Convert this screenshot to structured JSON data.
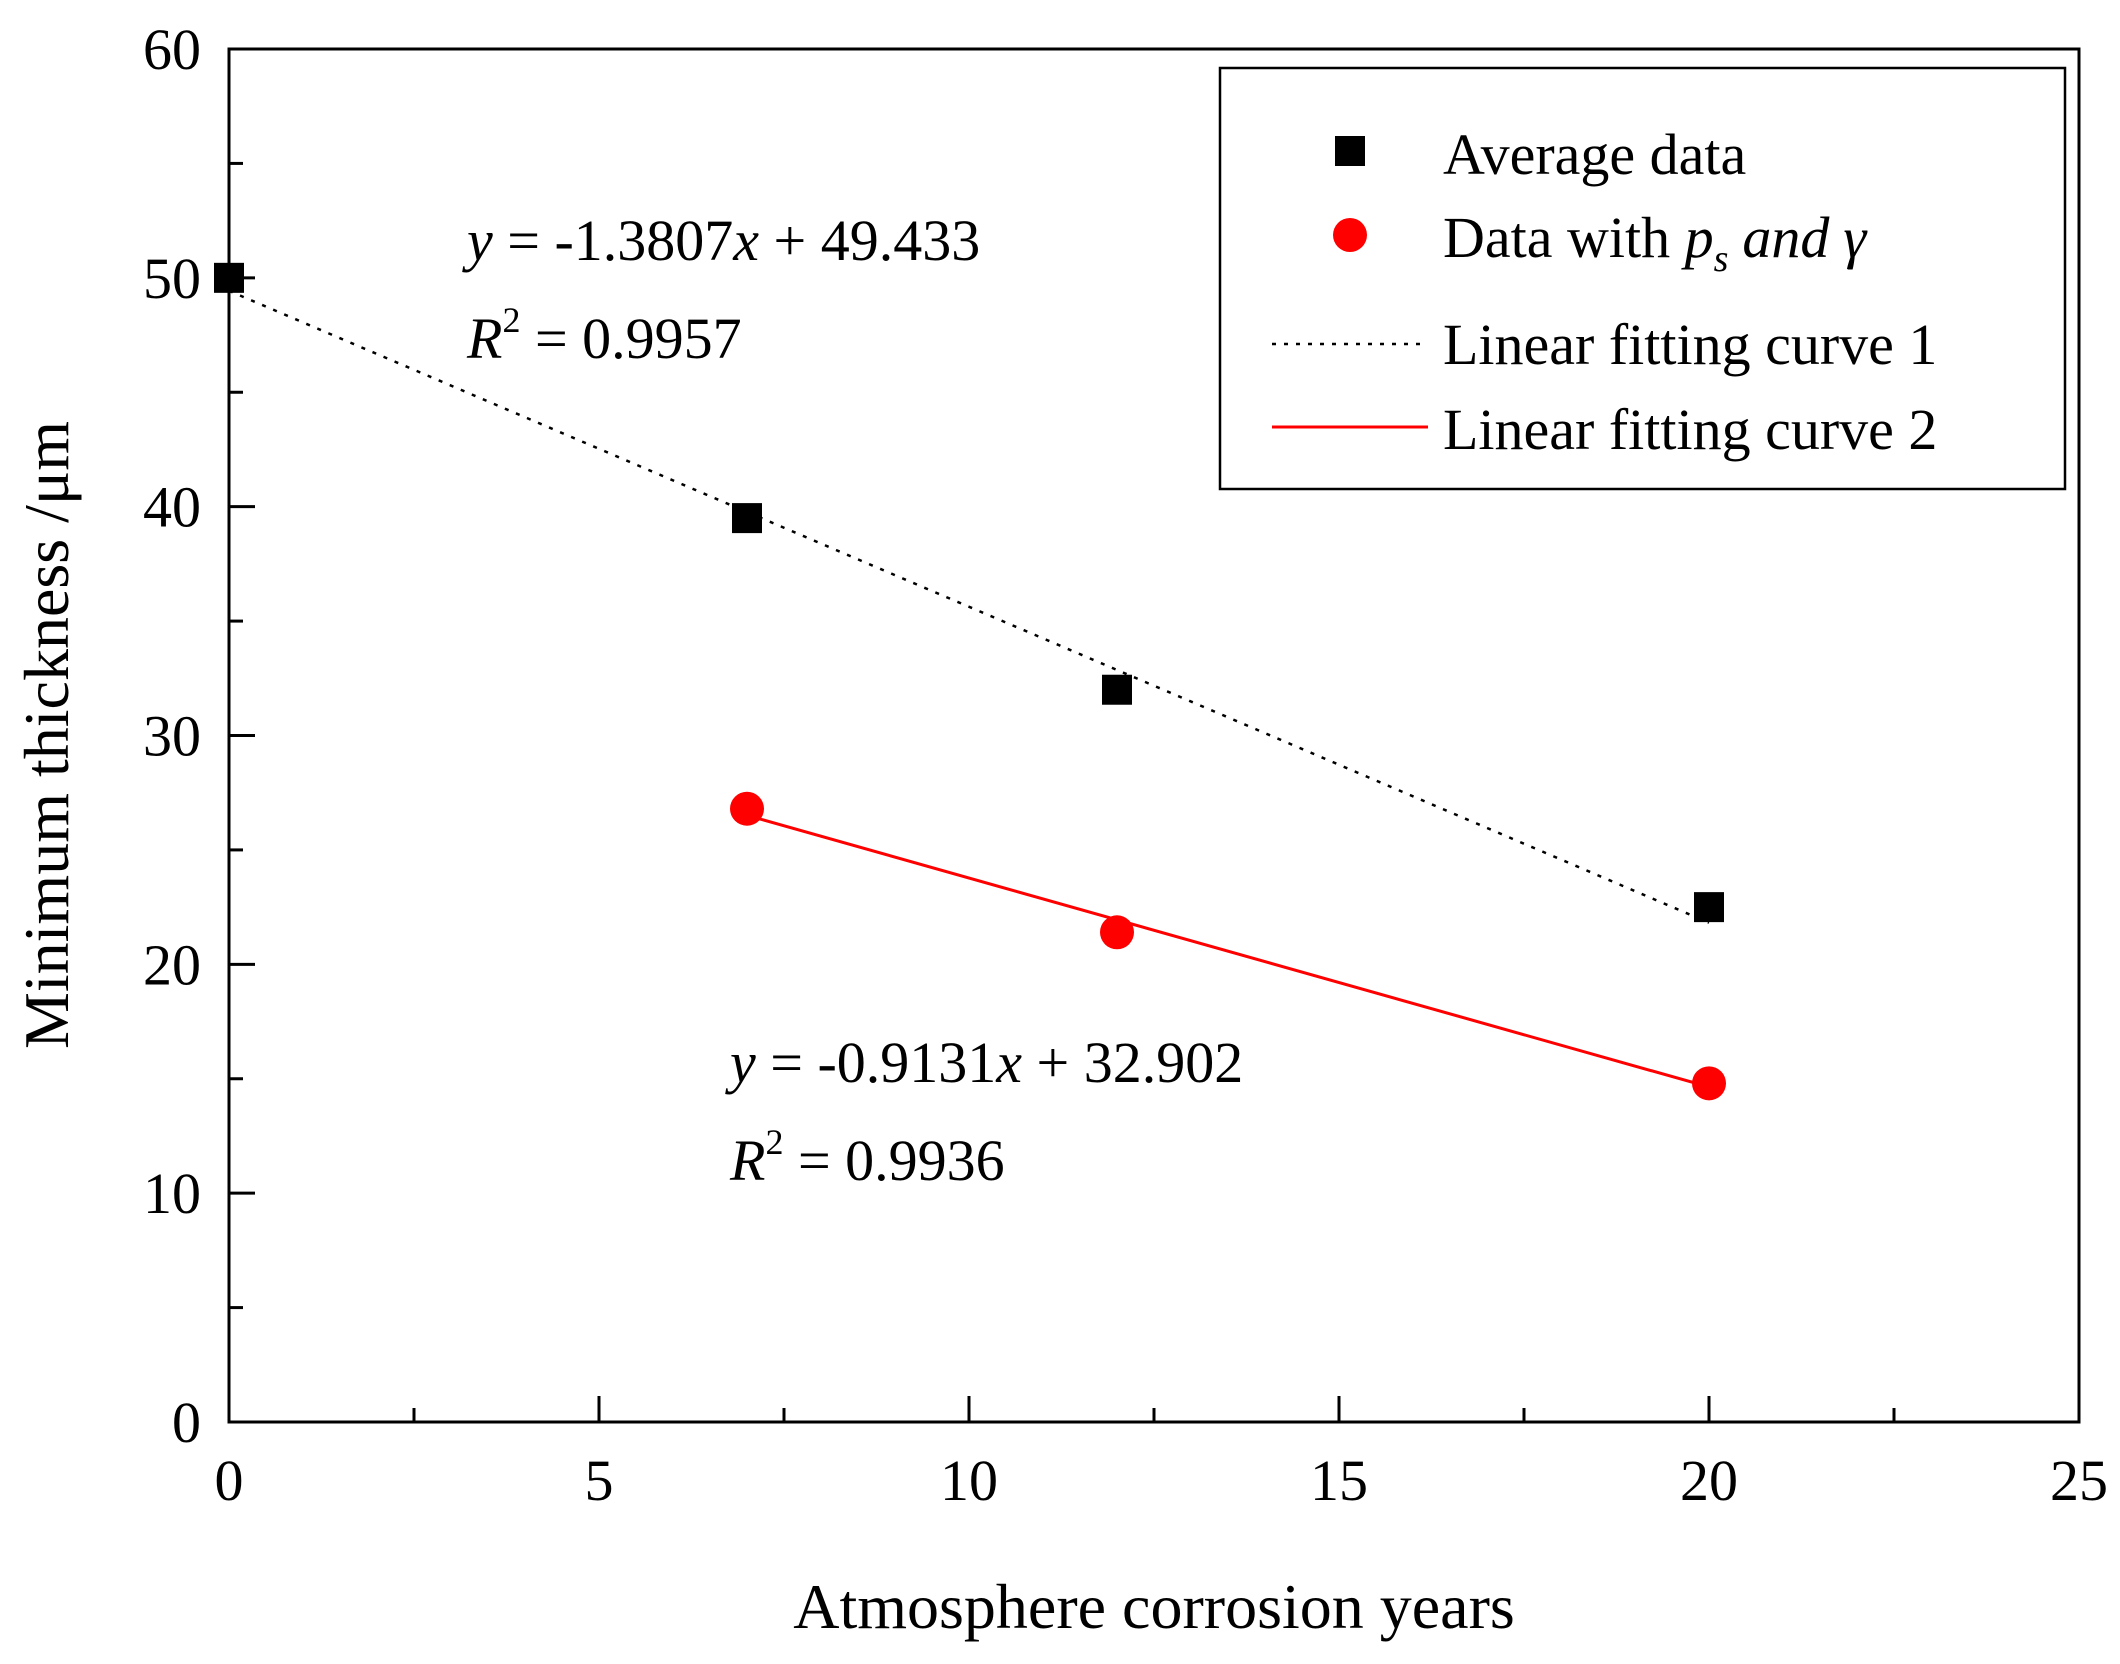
{
  "chart_data": {
    "type": "scatter",
    "xlabel": "Atmosphere corrosion years",
    "ylabel": "Minimum thickness /μm",
    "xlim": [
      0,
      25
    ],
    "ylim": [
      0,
      60
    ],
    "x_ticks": [
      0,
      5,
      10,
      15,
      20,
      25
    ],
    "y_ticks": [
      0,
      10,
      20,
      30,
      40,
      50,
      60
    ],
    "x_tick_labels": [
      "0",
      "5",
      "10",
      "15",
      "20",
      "25"
    ],
    "y_tick_labels": [
      "0",
      "10",
      "20",
      "30",
      "40",
      "50",
      "60"
    ],
    "grid": false,
    "legend_position": "top-right",
    "series": [
      {
        "name": "Average data",
        "marker": "square",
        "color": "#000000",
        "x": [
          0,
          7,
          12,
          20
        ],
        "y": [
          50.0,
          39.5,
          32.0,
          22.5
        ]
      },
      {
        "name": "Data with p_s and γ",
        "marker": "circle",
        "color": "#ff0000",
        "x": [
          7,
          12,
          20
        ],
        "y": [
          26.8,
          21.4,
          14.8
        ]
      }
    ],
    "fits": [
      {
        "name": "Linear fitting curve 1",
        "style": "dotted",
        "color": "#000000",
        "slope": -1.3807,
        "intercept": 49.433,
        "x_range": [
          0,
          20
        ],
        "slope_text": "-1.3807",
        "intercept_text": "49.433",
        "r2_text": "0.9957"
      },
      {
        "name": "Linear fitting curve 2",
        "style": "solid",
        "color": "#ff0000",
        "slope": -0.9131,
        "intercept": 32.902,
        "x_range": [
          7,
          20
        ],
        "slope_text": "-0.9131",
        "intercept_text": "32.902",
        "r2_text": "0.9936"
      }
    ],
    "legend": {
      "entry1": "Average data",
      "entry2_prefix": "Data with ",
      "entry2_p": "p",
      "entry2_sub": "s",
      "entry2_and": "and",
      "entry2_gamma": "γ",
      "entry3": "Linear fitting curve 1",
      "entry4": "Linear fitting curve 2"
    }
  }
}
